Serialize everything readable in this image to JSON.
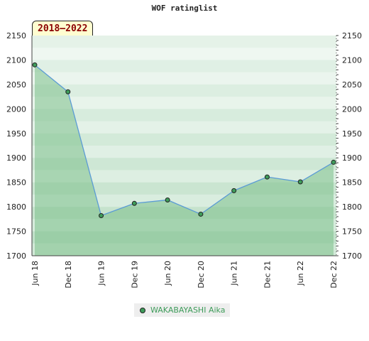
{
  "chart_data": {
    "type": "area",
    "title": "WOF ratinglist",
    "period": "2018–2022",
    "ylim": [
      1700,
      2150
    ],
    "y_ticks": [
      2150,
      2100,
      2050,
      2000,
      1950,
      1900,
      1850,
      1800,
      1750,
      1700
    ],
    "categories": [
      "Jun 18",
      "Dec 18",
      "Jun 19",
      "Dec 19",
      "Jun 20",
      "Dec 20",
      "Jun 21",
      "Dec 21",
      "Jun 22",
      "Dec 22"
    ],
    "series": [
      {
        "name": "WAKABAYASHI Aika",
        "values": [
          2090,
          2035,
          1782,
          1807,
          1814,
          1785,
          1833,
          1861,
          1851,
          1891
        ]
      }
    ],
    "colors": {
      "fill": "#7cc08a",
      "line": "#5b9bd5",
      "marker": "#3e9c5a",
      "legend_text": "#3e9c5a"
    }
  }
}
